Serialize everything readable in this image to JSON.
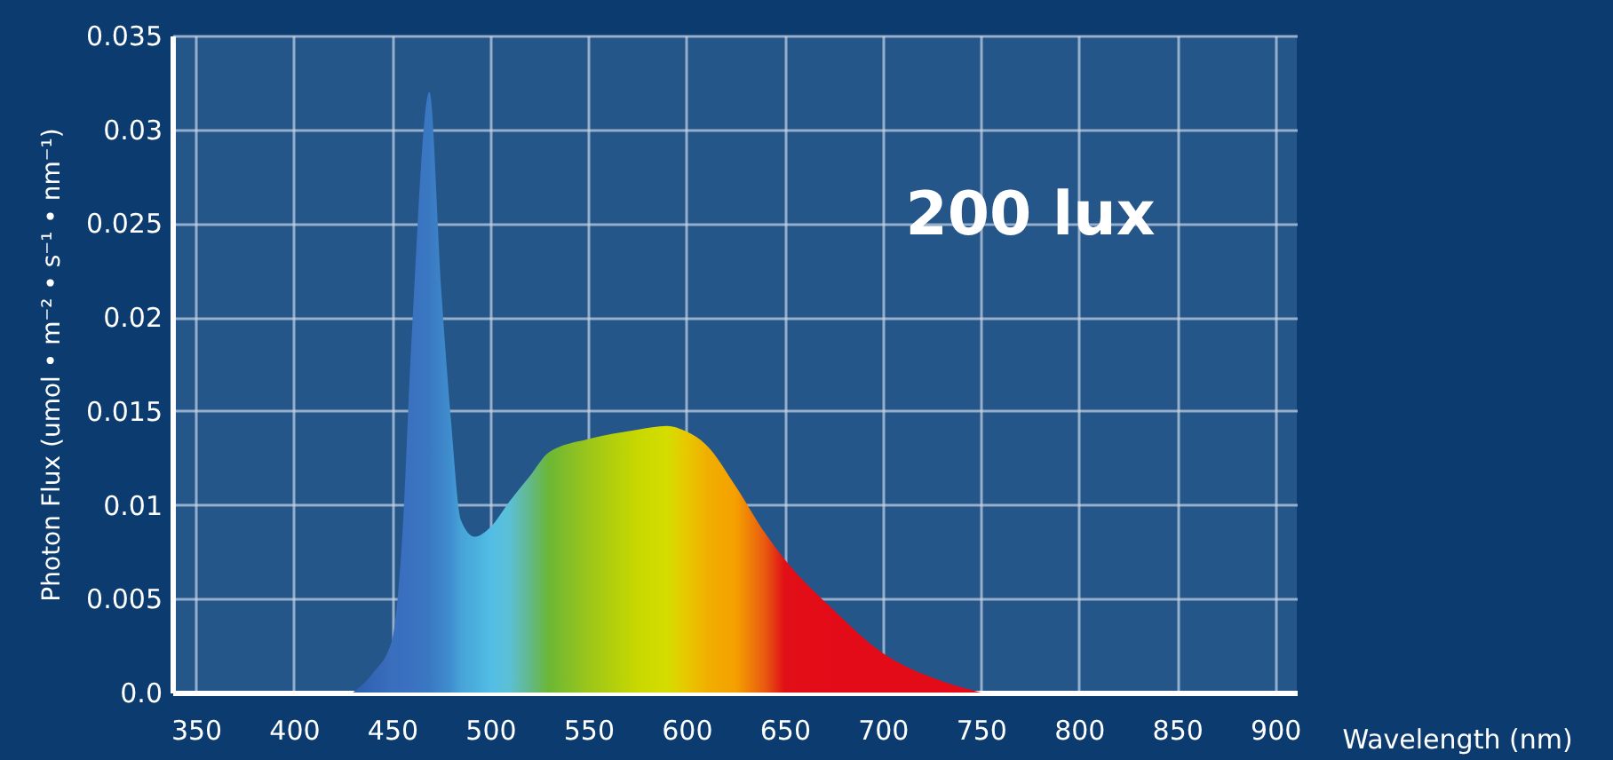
{
  "chart_data": {
    "type": "area",
    "xlabel": "Wavelength (nm)",
    "ylabel": "Photon Flux  (umol • m⁻² • s⁻¹ • nm⁻¹)",
    "x": [
      430,
      440,
      450,
      455,
      460,
      469,
      475,
      480,
      485,
      492,
      500,
      510,
      520,
      530,
      550,
      575,
      590,
      600,
      610,
      625,
      640,
      650,
      675,
      700,
      725,
      750
    ],
    "series": [
      {
        "values": [
          0,
          0.001,
          0.0028,
          0.008,
          0.019,
          0.032,
          0.0215,
          0.0145,
          0.0092,
          0.0083,
          0.0088,
          0.0102,
          0.0115,
          0.0128,
          0.0135,
          0.014,
          0.0142,
          0.0139,
          0.0132,
          0.011,
          0.0085,
          0.0071,
          0.0044,
          0.0021,
          0.0008,
          0
        ],
        "colors": [
          "#2f5fb0",
          "#3366b5",
          "#3a6fbd",
          "#3a6fbf",
          "#3a72c0",
          "#3a78c2",
          "#3d85c8",
          "#3f8fcf",
          "#47a3d8",
          "#4aaedc",
          "#52bde6",
          "#5cc0d5",
          "#62b88a",
          "#6cb735",
          "#9cc61a",
          "#c8d800",
          "#d4dd00",
          "#e8c800",
          "#f0b000",
          "#f5a000",
          "#e85a10",
          "#e10f17",
          "#e30b17",
          "#e30b17",
          "#e30b17",
          "#e30b17"
        ]
      }
    ],
    "xlim": [
      338,
      911
    ],
    "xticks": [
      350,
      400,
      450,
      500,
      550,
      600,
      650,
      700,
      750,
      800,
      850,
      900
    ],
    "ylim": [
      0,
      0.035
    ],
    "yticks": [
      {
        "value": 0,
        "label": "0.0"
      },
      0.005,
      0.01,
      0.015,
      0.02,
      0.025,
      0.03,
      0.035
    ],
    "grid": true,
    "annotations": [
      "200 lux"
    ]
  }
}
